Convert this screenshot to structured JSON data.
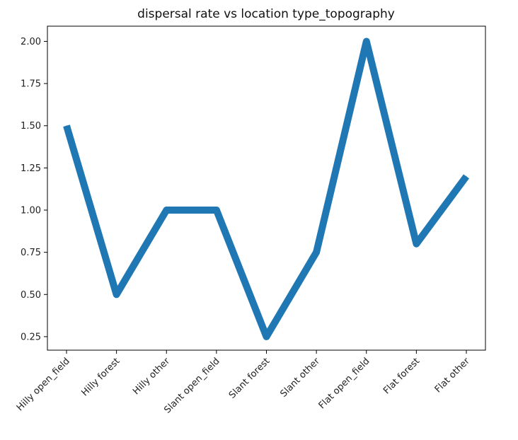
{
  "chart_data": {
    "type": "line",
    "title": "dispersal rate vs location type_topography",
    "xlabel": "",
    "ylabel": "",
    "categories": [
      "Hilly open_field",
      "Hilly forest",
      "Hilly other",
      "Slant open_field",
      "Slant forest",
      "Slant other",
      "Flat open_field",
      "Flat forest",
      "Flat other"
    ],
    "values": [
      1.5,
      0.5,
      1.0,
      1.0,
      0.25,
      0.75,
      2.0,
      0.8,
      1.2
    ],
    "ylim": [
      0.17,
      2.09
    ],
    "yticks": [
      "0.25",
      "0.50",
      "0.75",
      "1.00",
      "1.25",
      "1.50",
      "1.75",
      "2.00"
    ],
    "grid": false,
    "line_color": "#1f77b4"
  }
}
